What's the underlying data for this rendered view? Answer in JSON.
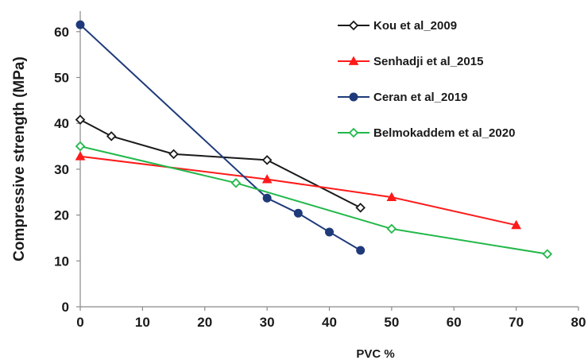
{
  "chart_data": {
    "type": "line",
    "xlabel": "PVC %",
    "ylabel": "Compressive strength (MPa)",
    "xlim": [
      0,
      80
    ],
    "ylim": [
      0,
      65
    ],
    "xticks": [
      0,
      10,
      20,
      30,
      40,
      50,
      60,
      70,
      80
    ],
    "yticks": [
      0,
      10,
      20,
      30,
      40,
      50,
      60
    ],
    "grid": false,
    "legend_position": "top-right",
    "series": [
      {
        "name": "Kou et al_2009",
        "color": "#1a1a1a",
        "marker": "diamond-open",
        "x": [
          0,
          5,
          15,
          30,
          45
        ],
        "y": [
          40.8,
          37.2,
          33.3,
          32.0,
          21.6
        ]
      },
      {
        "name": "Senhadji et al_2015",
        "color": "#ff1a1a",
        "marker": "triangle-filled",
        "x": [
          0,
          30,
          50,
          70
        ],
        "y": [
          32.8,
          27.8,
          23.9,
          17.8
        ]
      },
      {
        "name": "Ceran et al_2019",
        "color": "#1f3a7a",
        "marker": "circle-filled",
        "x": [
          0,
          30,
          35,
          40,
          45
        ],
        "y": [
          61.5,
          23.7,
          20.4,
          16.3,
          12.3
        ]
      },
      {
        "name": "Belmokaddem et al_2020",
        "color": "#22b84a",
        "marker": "diamond-open",
        "x": [
          0,
          25,
          50,
          75
        ],
        "y": [
          35.0,
          27.0,
          17.0,
          11.5
        ]
      }
    ]
  }
}
